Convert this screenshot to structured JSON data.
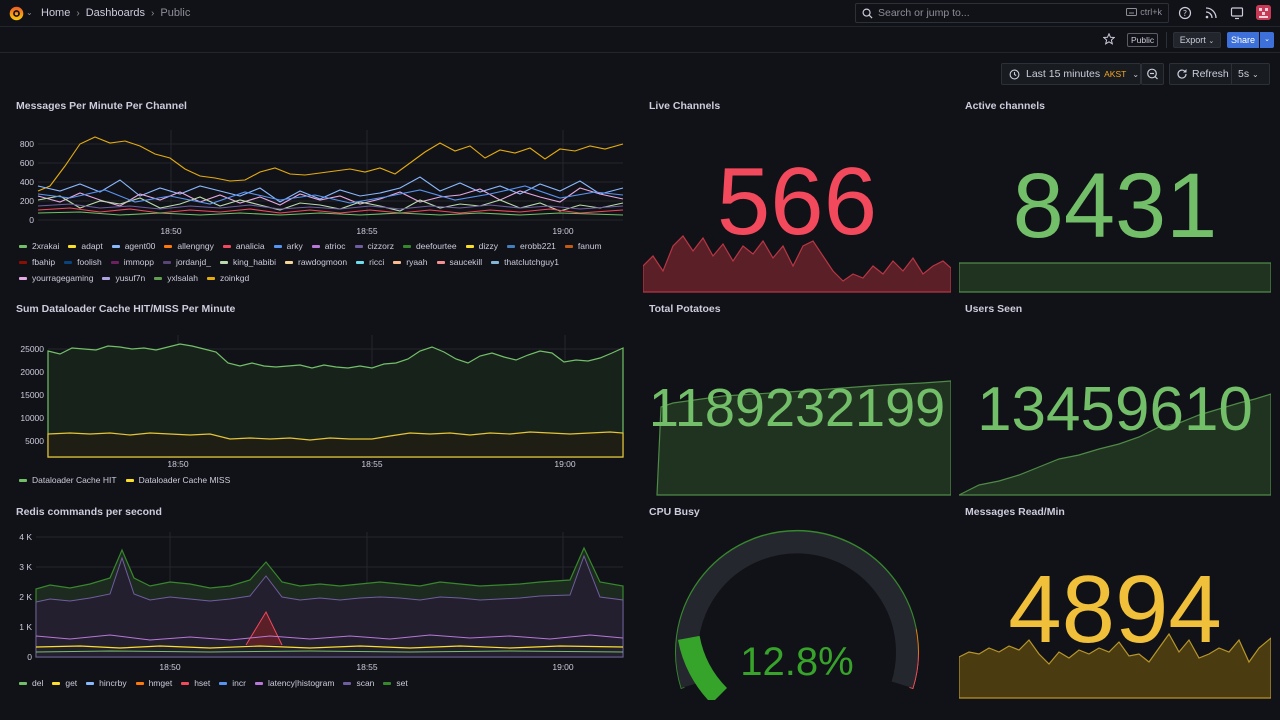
{
  "topbar": {
    "breadcrumb": [
      "Home",
      "Dashboards",
      "Public"
    ],
    "search_placeholder": "Search or jump to...",
    "search_shortcut": "ctrl+k"
  },
  "toolbar": {
    "public_badge": "Public",
    "export_label": "Export",
    "share_label": "Share",
    "time_range": "Last 15 minutes",
    "timezone": "AKST",
    "refresh_label": "Refresh",
    "refresh_interval": "5s"
  },
  "colors": {
    "background": "#111217",
    "green": "#73bf69",
    "red": "#f2495c",
    "yellow": "#fade2a",
    "orange_value": "#f0c03a"
  },
  "panels": {
    "messages_per_minute": {
      "title": "Messages Per Minute Per Channel",
      "legend": [
        {
          "name": "2xrakai",
          "color": "#73bf69"
        },
        {
          "name": "adapt",
          "color": "#fade2a"
        },
        {
          "name": "agent00",
          "color": "#8ab8ff"
        },
        {
          "name": "allengngy",
          "color": "#ff780a"
        },
        {
          "name": "analicia",
          "color": "#f2495c"
        },
        {
          "name": "arky",
          "color": "#5794f2"
        },
        {
          "name": "atrioc",
          "color": "#b877d9"
        },
        {
          "name": "cizzorz",
          "color": "#705da0"
        },
        {
          "name": "deefourtee",
          "color": "#37872d"
        },
        {
          "name": "dizzy",
          "color": "#fade2a"
        },
        {
          "name": "erobb221",
          "color": "#447ebc"
        },
        {
          "name": "fanum",
          "color": "#c15c17"
        },
        {
          "name": "fbahip",
          "color": "#890f02"
        },
        {
          "name": "foolish",
          "color": "#0a437c"
        },
        {
          "name": "immopp",
          "color": "#6d1f62"
        },
        {
          "name": "jordanjd_",
          "color": "#584477"
        },
        {
          "name": "king_habibi",
          "color": "#b7dbab"
        },
        {
          "name": "rawdogmoon",
          "color": "#f4d598"
        },
        {
          "name": "ricci",
          "color": "#70dbed"
        },
        {
          "name": "ryaah",
          "color": "#f9ba8f"
        },
        {
          "name": "saucekill",
          "color": "#f29191"
        },
        {
          "name": "thatclutchguy1",
          "color": "#82b5d8"
        },
        {
          "name": "yourragegaming",
          "color": "#e5a8e2"
        },
        {
          "name": "yusuf7n",
          "color": "#aea2e0"
        },
        {
          "name": "yxlsalah",
          "color": "#629e51"
        },
        {
          "name": "zoinkgd",
          "color": "#e5ac0e"
        }
      ],
      "y_ticks": [
        "800",
        "600",
        "400",
        "200",
        "0"
      ],
      "x_ticks": [
        "18:50",
        "18:55",
        "19:00"
      ]
    },
    "live_channels": {
      "title": "Live Channels",
      "value": "566"
    },
    "active_channels": {
      "title": "Active channels",
      "value": "8431"
    },
    "dataloader": {
      "title": "Sum Dataloader Cache HIT/MISS Per Minute",
      "y_ticks": [
        "25000",
        "20000",
        "15000",
        "10000",
        "5000"
      ],
      "x_ticks": [
        "18:50",
        "18:55",
        "19:00"
      ],
      "legend": [
        {
          "name": "Dataloader Cache HIT",
          "color": "#73bf69"
        },
        {
          "name": "Dataloader Cache MISS",
          "color": "#fade2a"
        }
      ]
    },
    "total_potatoes": {
      "title": "Total Potatoes",
      "value": "1189232199"
    },
    "users_seen": {
      "title": "Users Seen",
      "value": "13459610"
    },
    "redis": {
      "title": "Redis commands per second",
      "y_ticks": [
        "4 K",
        "3 K",
        "2 K",
        "1 K",
        "0"
      ],
      "x_ticks": [
        "18:50",
        "18:55",
        "19:00"
      ],
      "legend": [
        {
          "name": "del",
          "color": "#73bf69"
        },
        {
          "name": "get",
          "color": "#fade2a"
        },
        {
          "name": "hincrby",
          "color": "#8ab8ff"
        },
        {
          "name": "hmget",
          "color": "#ff780a"
        },
        {
          "name": "hset",
          "color": "#f2495c"
        },
        {
          "name": "incr",
          "color": "#5794f2"
        },
        {
          "name": "latency|histogram",
          "color": "#b877d9"
        },
        {
          "name": "scan",
          "color": "#705da0"
        },
        {
          "name": "set",
          "color": "#37872d"
        }
      ]
    },
    "cpu_busy": {
      "title": "CPU Busy",
      "value": "12.8%",
      "percent": 12.8
    },
    "messages_read": {
      "title": "Messages Read/Min",
      "value": "4894"
    }
  }
}
